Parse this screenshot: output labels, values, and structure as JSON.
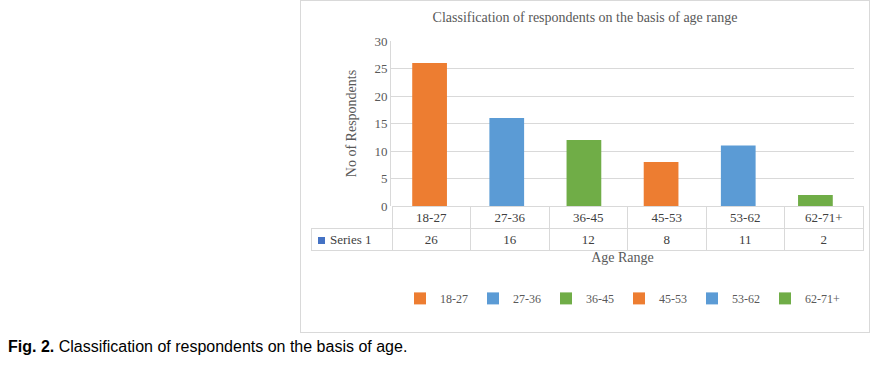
{
  "chart_data": {
    "type": "bar",
    "title": "Classification of respondents on the basis of age range",
    "x_label": "Age Range",
    "y_label": "No of Respondents",
    "categories": [
      "18-27",
      "27-36",
      "36-45",
      "45-53",
      "53-62",
      "62-71+"
    ],
    "series": [
      {
        "name": "Series 1",
        "values": [
          26,
          16,
          12,
          8,
          11,
          2
        ],
        "colors": [
          "#ED7D31",
          "#5B9BD5",
          "#70AD47",
          "#ED7D31",
          "#5B9BD5",
          "#70AD47"
        ]
      }
    ],
    "ylim": [
      0,
      30
    ],
    "yticks": [
      0,
      5,
      10,
      15,
      20,
      25,
      30
    ],
    "grid": true,
    "legend": "bottom",
    "tick_labels": "y"
  },
  "caption": {
    "label": "Fig. 2.",
    "text": "Classification of respondents on the basis of age."
  }
}
